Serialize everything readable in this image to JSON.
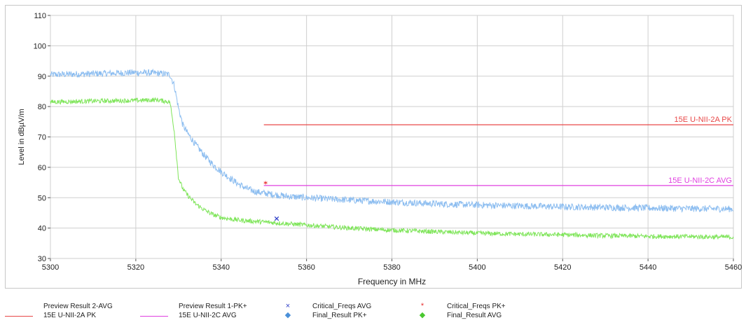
{
  "chart_data": {
    "type": "line",
    "xlabel": "Frequency in MHz",
    "ylabel": "Level in dBµV/m",
    "xlim": [
      5300,
      5460
    ],
    "ylim": [
      30,
      110
    ],
    "x_ticks": [
      5300,
      5320,
      5340,
      5360,
      5380,
      5400,
      5420,
      5440,
      5460
    ],
    "y_ticks": [
      30,
      40,
      50,
      60,
      70,
      80,
      90,
      100,
      110
    ],
    "grid": true,
    "series": [
      {
        "name": "Preview Result 1-PK+",
        "color": "#8cbdf0",
        "x": [
          5300,
          5310,
          5320,
          5325,
          5328,
          5329,
          5330,
          5331,
          5332,
          5334,
          5336,
          5338,
          5340,
          5342,
          5344,
          5346,
          5348,
          5350,
          5355,
          5360,
          5370,
          5380,
          5390,
          5400,
          5410,
          5420,
          5430,
          5440,
          5450,
          5460
        ],
        "y": [
          90.5,
          90.8,
          91.2,
          91.0,
          90.5,
          87.0,
          79.5,
          74.0,
          71.5,
          67.5,
          64.0,
          61.0,
          58.5,
          56.5,
          54.5,
          53.0,
          52.0,
          51.5,
          50.5,
          50.0,
          49.2,
          48.6,
          48.0,
          47.6,
          47.3,
          47.0,
          46.8,
          46.6,
          46.4,
          46.3
        ]
      },
      {
        "name": "Preview Result 2-AVG",
        "color": "#7fe55a",
        "x": [
          5300,
          5310,
          5320,
          5325,
          5328,
          5329,
          5330,
          5331,
          5332,
          5334,
          5336,
          5338,
          5340,
          5342,
          5345,
          5350,
          5355,
          5360,
          5370,
          5380,
          5390,
          5400,
          5410,
          5420,
          5430,
          5440,
          5450,
          5460
        ],
        "y": [
          81.5,
          81.8,
          82.0,
          82.2,
          81.5,
          72.0,
          56.5,
          53.0,
          51.0,
          48.0,
          46.0,
          44.5,
          43.5,
          43.0,
          42.5,
          42.0,
          41.5,
          41.0,
          40.0,
          39.3,
          38.8,
          38.3,
          38.0,
          37.8,
          37.5,
          37.3,
          37.2,
          37.0
        ]
      }
    ],
    "limit_lines": [
      {
        "name": "15E U-NII-2A PK",
        "color": "#e84848",
        "x": [
          5350,
          5460
        ],
        "y": 74.0
      },
      {
        "name": "15E U-NII-2C AVG",
        "color": "#e040e0",
        "x": [
          5350,
          5460
        ],
        "y": 54.0
      }
    ],
    "markers": [
      {
        "name": "Critical_Freqs PK+",
        "symbol": "*",
        "color": "#e83030",
        "x": 5350.4,
        "y": 54.6
      },
      {
        "name": "Critical_Freqs AVG",
        "symbol": "×",
        "color": "#3040c8",
        "x": 5353.0,
        "y": 43.2
      }
    ],
    "legend": [
      {
        "label": "Preview Result 2-AVG",
        "kind": "none",
        "color": ""
      },
      {
        "label": "Preview Result 1-PK+",
        "kind": "none",
        "color": ""
      },
      {
        "label": "Critical_Freqs AVG",
        "kind": "marker",
        "symbol": "×",
        "color": "#3040c8"
      },
      {
        "label": "Critical_Freqs PK+",
        "kind": "marker",
        "symbol": "*",
        "color": "#e83030"
      },
      {
        "label": "15E U-NII-2A PK",
        "kind": "line",
        "color": "#e84848"
      },
      {
        "label": "15E U-NII-2C AVG",
        "kind": "line",
        "color": "#e040e0"
      },
      {
        "label": "Final_Result PK+",
        "kind": "marker",
        "symbol": "◆",
        "color": "#4a90d9"
      },
      {
        "label": "Final_Result AVG",
        "kind": "marker",
        "symbol": "◆",
        "color": "#4ac830"
      }
    ],
    "legend_position": "bottom"
  }
}
